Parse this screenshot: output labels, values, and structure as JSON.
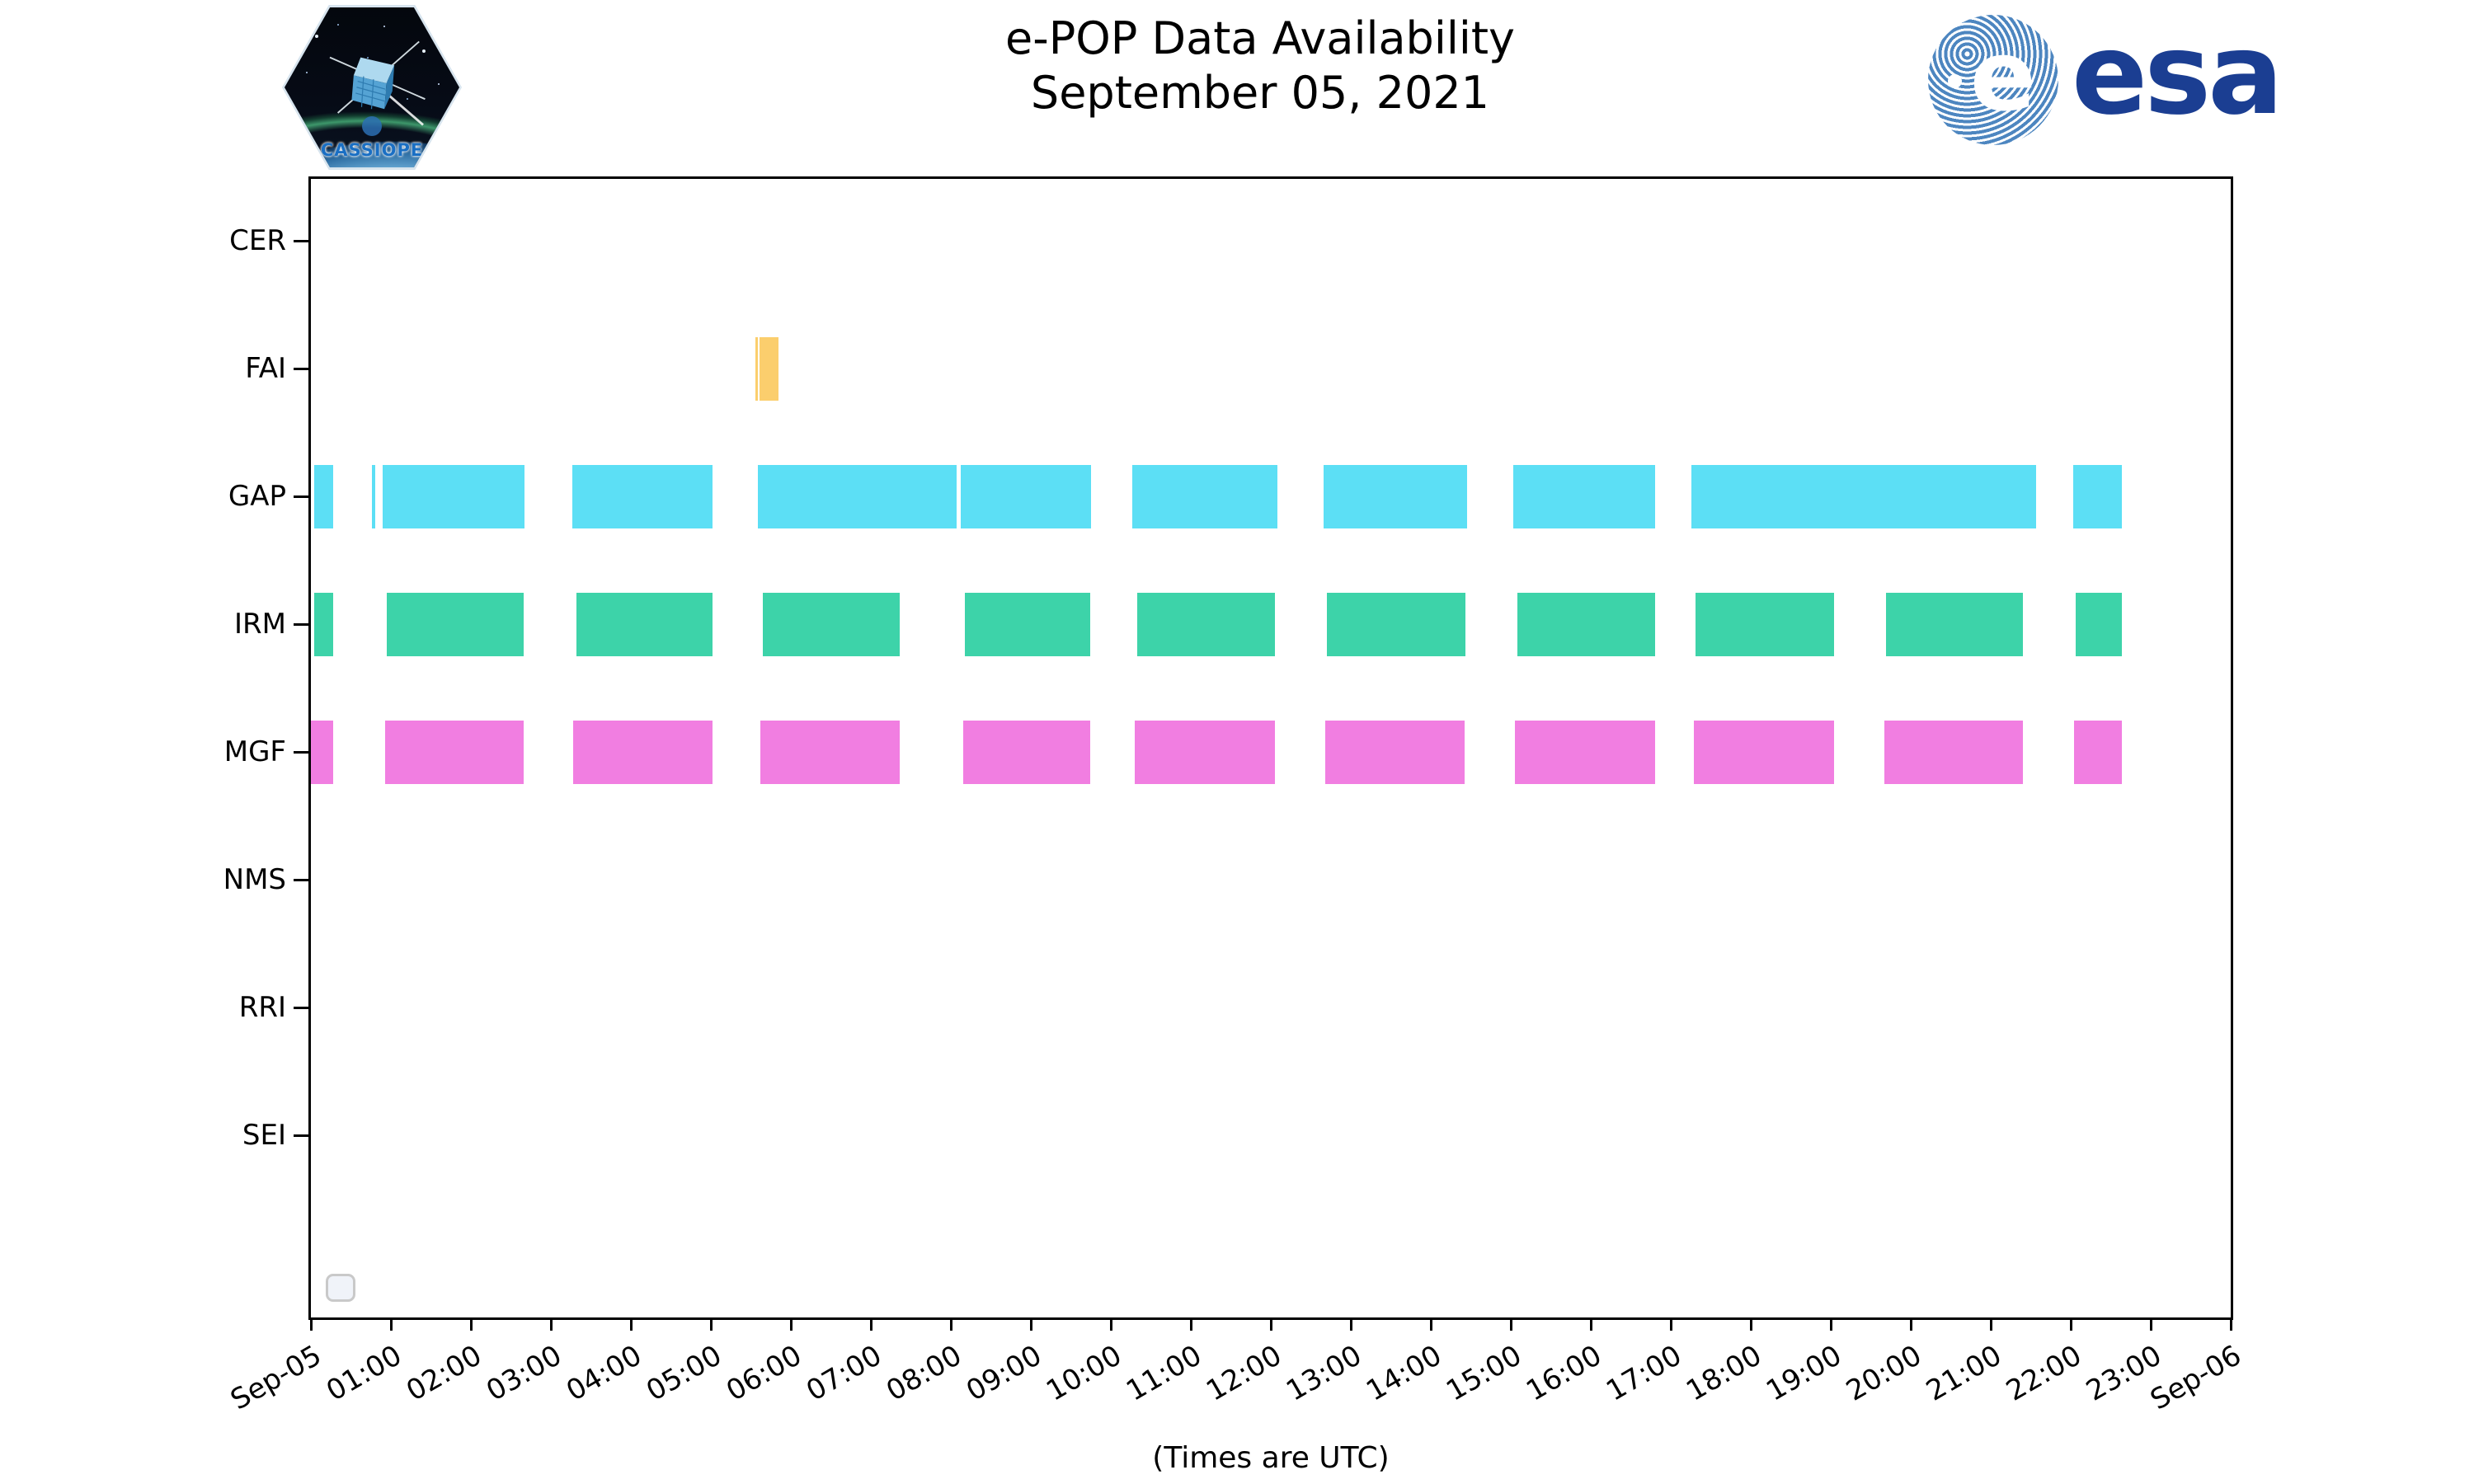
{
  "header": {
    "patch_label": "CASSIOPE",
    "esa_wordmark": "esa",
    "esa_globe_letter": "e"
  },
  "chart_data": {
    "type": "gantt",
    "title": "e-POP Data Availability",
    "subtitle": "September 05, 2021",
    "xlabel": "(Times are UTC)",
    "grid": false,
    "legend": {
      "visible": true,
      "entries": [],
      "position": "lower left"
    },
    "x_axis": {
      "unit": "hours UTC",
      "range": [
        0,
        24
      ],
      "tick_interval_hours": 1,
      "tick_labels": [
        "Sep-05",
        "01:00",
        "02:00",
        "03:00",
        "04:00",
        "05:00",
        "06:00",
        "07:00",
        "08:00",
        "09:00",
        "10:00",
        "11:00",
        "12:00",
        "13:00",
        "14:00",
        "15:00",
        "16:00",
        "17:00",
        "18:00",
        "19:00",
        "20:00",
        "21:00",
        "22:00",
        "23:00",
        "Sep-06"
      ]
    },
    "rows": [
      "CER",
      "FAI",
      "GAP",
      "IRM",
      "MGF",
      "NMS",
      "RRI",
      "SEI"
    ],
    "colors": {
      "FAI": "#FBCE6D",
      "GAP": "#5CDFF5",
      "IRM": "#3DD3A9",
      "MGF": "#F17EE1"
    },
    "series": [
      {
        "row": "CER",
        "segments_hours": []
      },
      {
        "row": "FAI",
        "segments_hours": [
          [
            5.56,
            5.59
          ],
          [
            5.61,
            5.85
          ]
        ]
      },
      {
        "row": "GAP",
        "segments_hours": [
          [
            0.04,
            0.28
          ],
          [
            0.76,
            0.8
          ],
          [
            0.9,
            2.67
          ],
          [
            3.27,
            5.02
          ],
          [
            5.59,
            8.07
          ],
          [
            8.12,
            9.75
          ],
          [
            10.27,
            12.08
          ],
          [
            12.66,
            14.45
          ],
          [
            15.03,
            16.8
          ],
          [
            17.26,
            21.57
          ],
          [
            22.03,
            22.64
          ]
        ]
      },
      {
        "row": "IRM",
        "segments_hours": [
          [
            0.04,
            0.28
          ],
          [
            0.95,
            2.66
          ],
          [
            3.32,
            5.02
          ],
          [
            5.65,
            7.36
          ],
          [
            8.18,
            9.74
          ],
          [
            10.33,
            12.05
          ],
          [
            12.7,
            14.43
          ],
          [
            15.08,
            16.8
          ],
          [
            17.31,
            19.04
          ],
          [
            19.69,
            21.4
          ],
          [
            22.06,
            22.64
          ]
        ]
      },
      {
        "row": "MGF",
        "segments_hours": [
          [
            0.0,
            0.28
          ],
          [
            0.93,
            2.66
          ],
          [
            3.28,
            5.02
          ],
          [
            5.62,
            7.36
          ],
          [
            8.15,
            9.74
          ],
          [
            10.3,
            12.05
          ],
          [
            12.68,
            14.42
          ],
          [
            15.05,
            16.8
          ],
          [
            17.29,
            19.04
          ],
          [
            19.67,
            21.4
          ],
          [
            22.04,
            22.64
          ]
        ]
      },
      {
        "row": "NMS",
        "segments_hours": []
      },
      {
        "row": "RRI",
        "segments_hours": []
      },
      {
        "row": "SEI",
        "segments_hours": []
      }
    ]
  }
}
